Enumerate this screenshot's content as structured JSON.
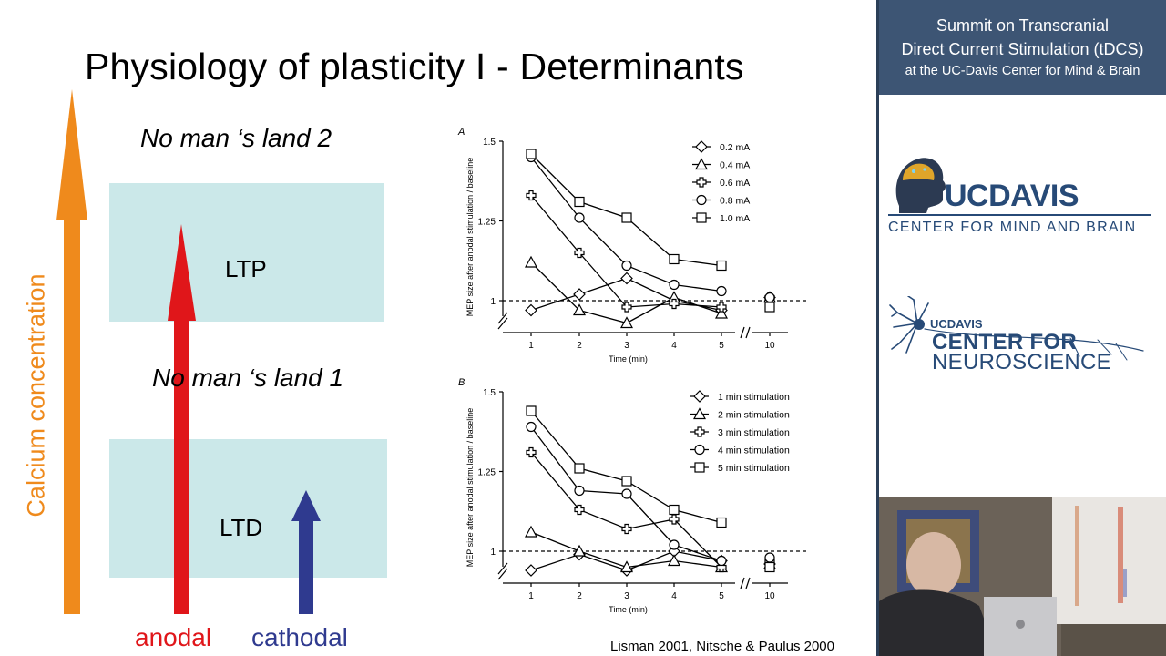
{
  "slide": {
    "title": "Physiology of plasticity I - Determinants",
    "no_mans_land_2": "No man ‘s land 2",
    "no_mans_land_1": "No man ‘s land 1",
    "ltp_label": "LTP",
    "ltd_label": "LTD",
    "axis_label": "Calcium concentration",
    "anodal_label": "anodal",
    "cathodal_label": "cathodal",
    "citation": "Lisman 2001, Nitsche & Paulus 2000",
    "colors": {
      "calcium_arrow": "#ef8a1c",
      "anodal": "#e0161a",
      "cathodal": "#2f3a8f",
      "band": "#cbe8e9"
    }
  },
  "sidebar": {
    "header_line1": "Summit on Transcranial",
    "header_line2": "Direct Current Stimulation (tDCS)",
    "header_line3": "at the UC-Davis Center for Mind & Brain",
    "ucdavis_logo": {
      "wordmark": "UCDAVIS",
      "subtitle": "CENTER  FOR  MIND  AND  BRAIN"
    },
    "neuroscience_logo": {
      "small": "UCDAVIS",
      "line1": "CENTER FOR",
      "line2": "NEUROSCIENCE"
    },
    "header_color": "#3d5574"
  },
  "chart_data": [
    {
      "type": "line",
      "panel": "A",
      "xlabel": "Time (min)",
      "ylabel": "MEP size after anodal stimulation / baseline",
      "x": [
        1,
        2,
        3,
        4,
        5,
        10
      ],
      "x_tick_labels": [
        "1",
        "2",
        "3",
        "4",
        "5",
        "10"
      ],
      "ylim": [
        0.9,
        1.5
      ],
      "y_ticks": [
        1,
        1.25,
        1.5
      ],
      "y_tick_labels": [
        "1",
        "1.25",
        "1.5"
      ],
      "reference_line": 1,
      "series": [
        {
          "name": "0.2 mA",
          "marker": "diamond",
          "fill": "open",
          "values": [
            0.97,
            1.02,
            1.07,
            1.0,
            0.97,
            1.01
          ]
        },
        {
          "name": "0.4 mA",
          "marker": "triangle",
          "fill": "open",
          "values": [
            1.12,
            0.97,
            0.93,
            1.01,
            0.96,
            1.01
          ]
        },
        {
          "name": "0.6 mA",
          "marker": "cross",
          "fill": "open",
          "values": [
            1.33,
            1.15,
            0.98,
            0.99,
            0.98,
            1.01
          ]
        },
        {
          "name": "0.8 mA",
          "marker": "circle",
          "fill": "open",
          "values": [
            1.45,
            1.26,
            1.11,
            1.05,
            1.03,
            1.01
          ]
        },
        {
          "name": "1.0 mA",
          "marker": "square",
          "fill": "open",
          "values": [
            1.46,
            1.31,
            1.26,
            1.13,
            1.11,
            0.98
          ]
        }
      ]
    },
    {
      "type": "line",
      "panel": "B",
      "xlabel": "Time (min)",
      "ylabel": "MEP size after anodal stimulation / baseline",
      "x": [
        1,
        2,
        3,
        4,
        5,
        10
      ],
      "x_tick_labels": [
        "1",
        "2",
        "3",
        "4",
        "5",
        "10"
      ],
      "ylim": [
        0.9,
        1.5
      ],
      "y_ticks": [
        1,
        1.25,
        1.5
      ],
      "y_tick_labels": [
        "1",
        "1.25",
        "1.5"
      ],
      "reference_line": 1,
      "series": [
        {
          "name": "1 min stimulation",
          "marker": "diamond",
          "fill": "open",
          "values": [
            0.94,
            0.99,
            0.94,
            1.0,
            0.97,
            0.96
          ]
        },
        {
          "name": "2 min stimulation",
          "marker": "triangle",
          "fill": "open",
          "values": [
            1.06,
            1.0,
            0.95,
            0.97,
            0.95,
            0.96
          ]
        },
        {
          "name": "3 min stimulation",
          "marker": "cross",
          "fill": "open",
          "values": [
            1.31,
            1.13,
            1.07,
            1.1,
            0.95,
            0.97
          ]
        },
        {
          "name": "4 min stimulation",
          "marker": "circle",
          "fill": "open",
          "values": [
            1.39,
            1.19,
            1.18,
            1.02,
            0.97,
            0.98
          ]
        },
        {
          "name": "5 min stimulation",
          "marker": "square",
          "fill": "open",
          "values": [
            1.44,
            1.26,
            1.22,
            1.13,
            1.09,
            0.95
          ]
        }
      ]
    }
  ]
}
